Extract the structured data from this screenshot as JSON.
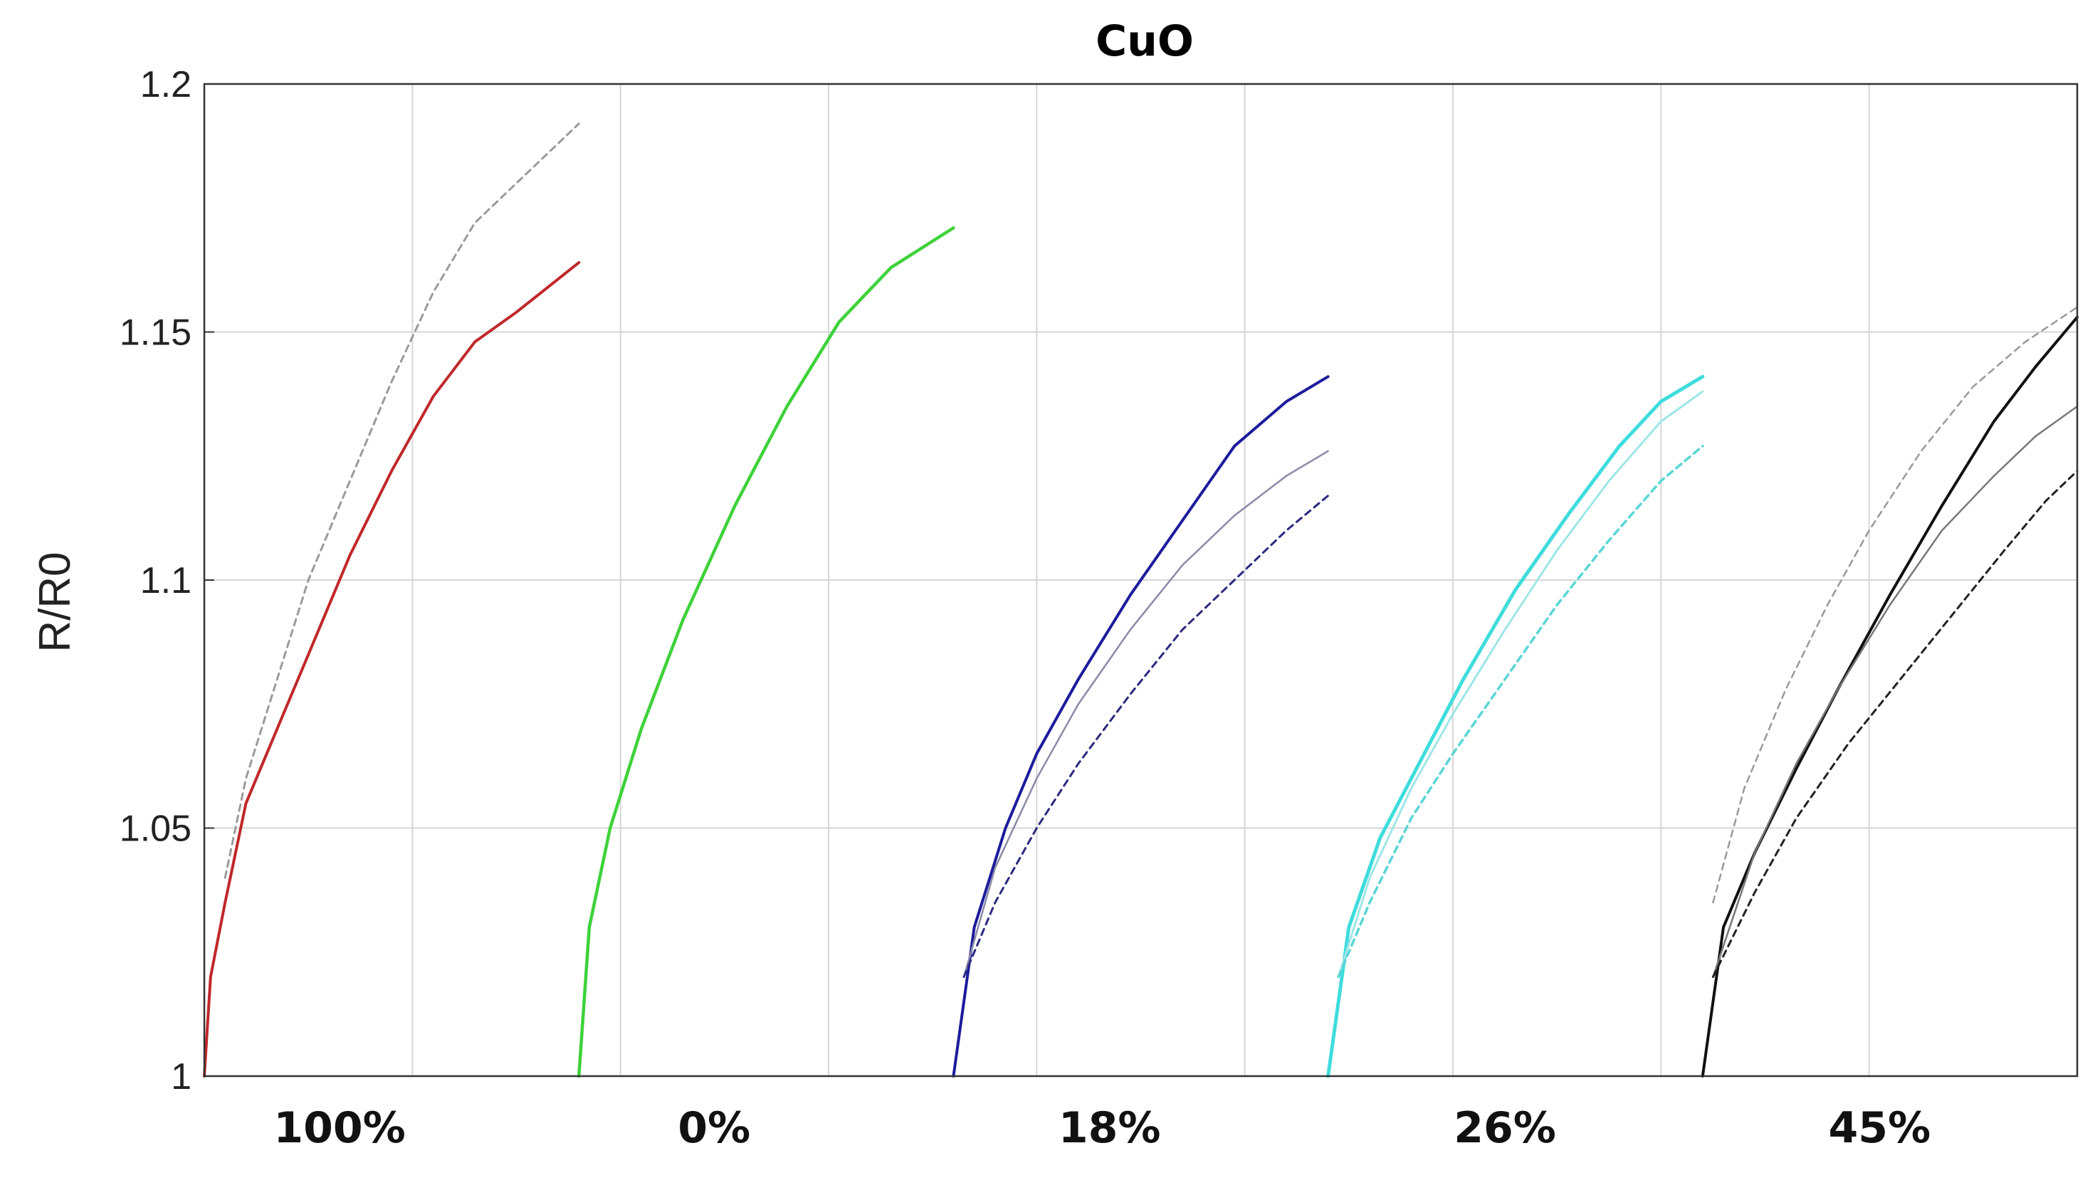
{
  "chart_data": {
    "type": "line",
    "title": "CuO",
    "ylabel": "R/R0",
    "xlabel": "",
    "ylim": [
      1,
      1.2
    ],
    "xlim": [
      0,
      9
    ],
    "yticks": [
      1,
      1.05,
      1.1,
      1.15,
      1.2
    ],
    "ytick_labels": [
      "1",
      "1.05",
      "1.1",
      "1.15",
      "1.2"
    ],
    "xgrid": [
      1,
      2,
      3,
      4,
      5,
      6,
      7,
      8
    ],
    "grid": true,
    "legend": "none",
    "group_labels": [
      "100%",
      "0%",
      "18%",
      "26%",
      "45%"
    ],
    "group_label_positions": [
      0.65,
      2.45,
      4.35,
      6.25,
      8.05
    ],
    "series": [
      {
        "group": "100%",
        "color": "#c0282a",
        "style": "solid",
        "width": 4,
        "x": [
          0,
          0.03,
          0.1,
          0.2,
          0.35,
          0.5,
          0.7,
          0.9,
          1.1,
          1.3,
          1.5,
          1.65,
          1.8
        ],
        "y": [
          1.0,
          1.02,
          1.035,
          1.055,
          1.07,
          1.085,
          1.105,
          1.122,
          1.137,
          1.148,
          1.154,
          1.159,
          1.164
        ]
      },
      {
        "group": "100%",
        "color": "#9a9a9a",
        "style": "dashed",
        "width": 3,
        "x": [
          0.1,
          0.2,
          0.35,
          0.5,
          0.7,
          0.9,
          1.1,
          1.3,
          1.5,
          1.65,
          1.8
        ],
        "y": [
          1.04,
          1.06,
          1.08,
          1.1,
          1.12,
          1.14,
          1.158,
          1.172,
          1.18,
          1.186,
          1.192
        ]
      },
      {
        "group": "0%",
        "color": "#3ed23a",
        "style": "solid",
        "width": 4.5,
        "x": [
          1.8,
          1.85,
          1.95,
          2.1,
          2.3,
          2.55,
          2.8,
          3.05,
          3.3,
          3.6
        ],
        "y": [
          1.0,
          1.03,
          1.05,
          1.07,
          1.092,
          1.115,
          1.135,
          1.152,
          1.163,
          1.171
        ]
      },
      {
        "group": "18%",
        "color": "#1c1c9c",
        "style": "solid",
        "width": 4,
        "x": [
          3.6,
          3.7,
          3.85,
          4.0,
          4.2,
          4.45,
          4.7,
          4.95,
          5.2,
          5.4
        ],
        "y": [
          1.0,
          1.03,
          1.05,
          1.065,
          1.08,
          1.097,
          1.112,
          1.127,
          1.136,
          1.141
        ]
      },
      {
        "group": "18%",
        "color": "#8a8aa8",
        "style": "solid",
        "width": 2.5,
        "x": [
          3.65,
          3.8,
          4.0,
          4.2,
          4.45,
          4.7,
          4.95,
          5.2,
          5.4
        ],
        "y": [
          1.02,
          1.042,
          1.06,
          1.075,
          1.09,
          1.103,
          1.113,
          1.121,
          1.126
        ]
      },
      {
        "group": "18%",
        "color": "#2a2a80",
        "style": "dashed",
        "width": 3,
        "x": [
          3.65,
          3.8,
          4.0,
          4.2,
          4.45,
          4.7,
          4.95,
          5.2,
          5.4
        ],
        "y": [
          1.02,
          1.035,
          1.05,
          1.063,
          1.077,
          1.09,
          1.1,
          1.11,
          1.117
        ]
      },
      {
        "group": "26%",
        "color": "#3fdcdc",
        "style": "solid",
        "width": 5,
        "x": [
          5.4,
          5.5,
          5.65,
          5.85,
          6.05,
          6.3,
          6.55,
          6.8,
          7.0,
          7.2
        ],
        "y": [
          1.0,
          1.03,
          1.048,
          1.064,
          1.08,
          1.098,
          1.113,
          1.127,
          1.136,
          1.141
        ]
      },
      {
        "group": "26%",
        "color": "#9ee6e6",
        "style": "solid",
        "width": 3,
        "x": [
          5.45,
          5.6,
          5.8,
          6.0,
          6.25,
          6.5,
          6.75,
          7.0,
          7.2
        ],
        "y": [
          1.02,
          1.04,
          1.058,
          1.073,
          1.09,
          1.106,
          1.12,
          1.132,
          1.138
        ]
      },
      {
        "group": "26%",
        "color": "#5ad6d6",
        "style": "dashed",
        "width": 3.5,
        "x": [
          5.45,
          5.6,
          5.8,
          6.0,
          6.25,
          6.5,
          6.75,
          7.0,
          7.2
        ],
        "y": [
          1.02,
          1.035,
          1.052,
          1.065,
          1.08,
          1.095,
          1.108,
          1.12,
          1.127
        ]
      },
      {
        "group": "45%",
        "color": "#111111",
        "style": "solid",
        "width": 4,
        "x": [
          7.2,
          7.3,
          7.45,
          7.65,
          7.85,
          8.1,
          8.35,
          8.6,
          8.8,
          9.0
        ],
        "y": [
          1.0,
          1.03,
          1.045,
          1.062,
          1.078,
          1.097,
          1.115,
          1.132,
          1.143,
          1.153
        ]
      },
      {
        "group": "45%",
        "color": "#777777",
        "style": "solid",
        "width": 2.5,
        "x": [
          7.25,
          7.45,
          7.65,
          7.85,
          8.1,
          8.35,
          8.6,
          8.8,
          9.0
        ],
        "y": [
          1.02,
          1.045,
          1.063,
          1.078,
          1.095,
          1.11,
          1.121,
          1.129,
          1.135
        ]
      },
      {
        "group": "45%",
        "color": "#999999",
        "style": "dashed",
        "width": 2.5,
        "x": [
          7.25,
          7.4,
          7.6,
          7.8,
          8.0,
          8.25,
          8.5,
          8.75,
          9.0
        ],
        "y": [
          1.035,
          1.058,
          1.078,
          1.095,
          1.11,
          1.126,
          1.139,
          1.148,
          1.155
        ]
      },
      {
        "group": "45%",
        "color": "#222222",
        "style": "dashed",
        "width": 3,
        "x": [
          7.25,
          7.45,
          7.65,
          7.9,
          8.15,
          8.4,
          8.65,
          8.85,
          9.0
        ],
        "y": [
          1.02,
          1.037,
          1.052,
          1.067,
          1.08,
          1.093,
          1.106,
          1.116,
          1.122
        ]
      }
    ]
  }
}
